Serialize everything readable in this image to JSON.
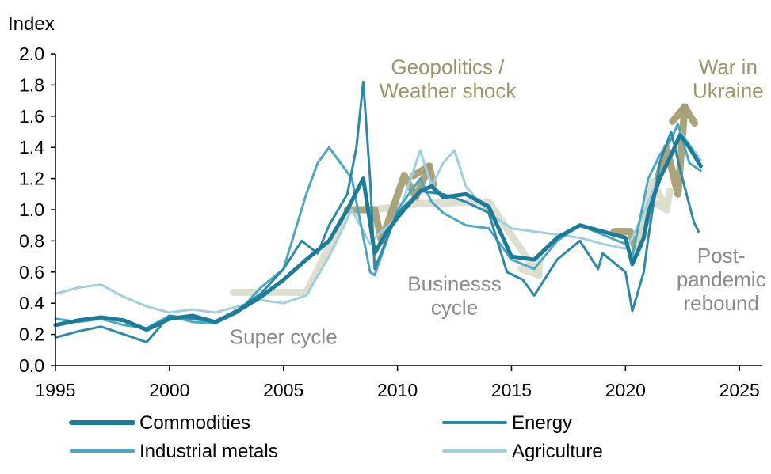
{
  "chart_data": {
    "type": "line",
    "ylabel": "Index",
    "xlim": [
      1995,
      2026
    ],
    "ylim": [
      0,
      2.0
    ],
    "x_ticks": [
      "1995",
      "2000",
      "2005",
      "2010",
      "2015",
      "2020",
      "2025"
    ],
    "y_ticks": [
      "0.0",
      "0.2",
      "0.4",
      "0.6",
      "0.8",
      "1.0",
      "1.2",
      "1.4",
      "1.6",
      "1.8",
      "2.0"
    ],
    "legend_position": "bottom",
    "series": [
      {
        "name": "Commodities",
        "color": "#1a7c98",
        "width": 5,
        "x": [
          1995,
          1996,
          1997,
          1998,
          1999,
          2000,
          2001,
          2002,
          2003,
          2004,
          2005,
          2006,
          2007,
          2007.8,
          2008.5,
          2009,
          2009.5,
          2010,
          2011,
          2011.5,
          2012,
          2013,
          2014,
          2015,
          2016,
          2017,
          2018,
          2019,
          2020,
          2020.3,
          2020.8,
          2021,
          2021.5,
          2022,
          2022.4,
          2022.8,
          2023.3
        ],
        "y": [
          0.26,
          0.29,
          0.31,
          0.29,
          0.23,
          0.3,
          0.32,
          0.28,
          0.35,
          0.44,
          0.55,
          0.68,
          0.8,
          1.0,
          1.2,
          0.72,
          0.85,
          0.95,
          1.12,
          1.15,
          1.08,
          1.1,
          1.02,
          0.7,
          0.68,
          0.82,
          0.9,
          0.86,
          0.82,
          0.65,
          0.82,
          0.98,
          1.2,
          1.35,
          1.48,
          1.4,
          1.28
        ]
      },
      {
        "name": "Energy",
        "color": "#2a8aa8",
        "width": 3,
        "x": [
          1995,
          1996,
          1997,
          1998,
          1999,
          2000,
          2001,
          2002,
          2003,
          2004,
          2005,
          2005.8,
          2006.5,
          2007,
          2007.8,
          2008.2,
          2008.5,
          2008.8,
          2009,
          2009.5,
          2010,
          2011,
          2012,
          2013,
          2014,
          2014.8,
          2015.5,
          2016,
          2017,
          2018,
          2018.8,
          2019,
          2020,
          2020.3,
          2020.8,
          2021,
          2021.5,
          2022,
          2022.5,
          2023,
          2023.2
        ],
        "y": [
          0.18,
          0.22,
          0.25,
          0.2,
          0.15,
          0.32,
          0.3,
          0.28,
          0.36,
          0.46,
          0.62,
          0.8,
          0.72,
          0.9,
          1.1,
          1.4,
          1.82,
          1.2,
          0.62,
          0.8,
          0.98,
          1.12,
          1.1,
          1.05,
          0.98,
          0.6,
          0.55,
          0.45,
          0.68,
          0.8,
          0.62,
          0.72,
          0.6,
          0.35,
          0.6,
          0.82,
          1.3,
          1.5,
          1.2,
          0.92,
          0.86
        ]
      },
      {
        "name": "Industrial metals",
        "color": "#4aa8c4",
        "width": 3,
        "x": [
          1995,
          1996,
          1997,
          1998,
          1999,
          2000,
          2001,
          2002,
          2003,
          2004,
          2005,
          2006,
          2006.5,
          2007,
          2008,
          2008.8,
          2009,
          2010,
          2011,
          2011.5,
          2012,
          2013,
          2014,
          2015,
          2016,
          2017,
          2018,
          2019,
          2020,
          2020.3,
          2021,
          2021.5,
          2022,
          2022.3,
          2022.8,
          2023.3
        ],
        "y": [
          0.3,
          0.28,
          0.3,
          0.26,
          0.24,
          0.32,
          0.28,
          0.27,
          0.34,
          0.5,
          0.62,
          1.1,
          1.3,
          1.4,
          1.2,
          0.6,
          0.58,
          1.0,
          1.2,
          1.05,
          0.98,
          0.9,
          0.88,
          0.68,
          0.62,
          0.8,
          0.9,
          0.84,
          0.78,
          0.7,
          1.2,
          1.35,
          1.45,
          1.55,
          1.3,
          1.25
        ]
      },
      {
        "name": "Agriculture",
        "color": "#9fd0e0",
        "width": 3,
        "x": [
          1995,
          1996,
          1997,
          1998,
          1999,
          2000,
          2001,
          2002,
          2003,
          2004,
          2005,
          2006,
          2007,
          2008,
          2008.8,
          2009,
          2010,
          2011,
          2011.5,
          2012,
          2012.5,
          2013,
          2014,
          2015,
          2016,
          2017,
          2018,
          2019,
          2020,
          2020.3,
          2021,
          2021.5,
          2022,
          2022.4,
          2023,
          2023.3
        ],
        "y": [
          0.46,
          0.5,
          0.52,
          0.44,
          0.38,
          0.34,
          0.36,
          0.34,
          0.38,
          0.42,
          0.4,
          0.45,
          0.7,
          1.0,
          0.78,
          0.82,
          0.95,
          1.38,
          1.15,
          1.3,
          1.38,
          1.15,
          0.98,
          0.88,
          0.86,
          0.84,
          0.82,
          0.78,
          0.75,
          0.82,
          1.05,
          1.22,
          1.35,
          1.5,
          1.38,
          1.32
        ]
      }
    ],
    "annotations": [
      {
        "text_lines": [
          "Super cycle"
        ],
        "color": "#8a8a8a",
        "x": 2005,
        "y": 0.14
      },
      {
        "text_lines": [
          "Businesss",
          "cycle"
        ],
        "color": "#8a8a8a",
        "x": 2012.5,
        "y": 0.48
      },
      {
        "text_lines": [
          "Geopolitics /",
          "Weather shock"
        ],
        "color": "#9d9468",
        "x": 2012.2,
        "y": 1.87
      },
      {
        "text_lines": [
          "War in",
          "Ukraine"
        ],
        "color": "#9d9468",
        "x": 2024.5,
        "y": 1.87
      },
      {
        "text_lines": [
          "Post-",
          "pandemic",
          "rebound"
        ],
        "color": "#8a8a8a",
        "x": 2024.2,
        "y": 0.66
      }
    ],
    "arrows": [
      {
        "color": "#dcdccb",
        "points": [
          [
            2002.8,
            0.47
          ],
          [
            2006.0,
            0.47
          ],
          [
            2007.8,
            1.0
          ],
          [
            2009.0,
            1.0
          ],
          [
            2011.0,
            1.04
          ],
          [
            2014.0,
            1.05
          ],
          [
            2016.2,
            0.58
          ]
        ]
      },
      {
        "color": "#a49c70",
        "points": [
          [
            2007.8,
            1.0
          ],
          [
            2009.0,
            1.0
          ],
          [
            2009.3,
            0.8
          ],
          [
            2010.3,
            1.22
          ],
          [
            2010.8,
            1.08
          ],
          [
            2011.4,
            1.28
          ]
        ]
      },
      {
        "color": "#a49c70",
        "points": [
          [
            2019.5,
            0.86
          ],
          [
            2020.2,
            0.86
          ],
          [
            2020.5,
            0.72
          ],
          [
            2021.8,
            1.4
          ],
          [
            2022.3,
            1.1
          ],
          [
            2022.6,
            1.66
          ]
        ]
      },
      {
        "color": "#dcdccb",
        "points": [
          [
            2020.5,
            0.72
          ],
          [
            2021.2,
            1.18
          ],
          [
            2021.8,
            1.0
          ]
        ]
      }
    ]
  }
}
